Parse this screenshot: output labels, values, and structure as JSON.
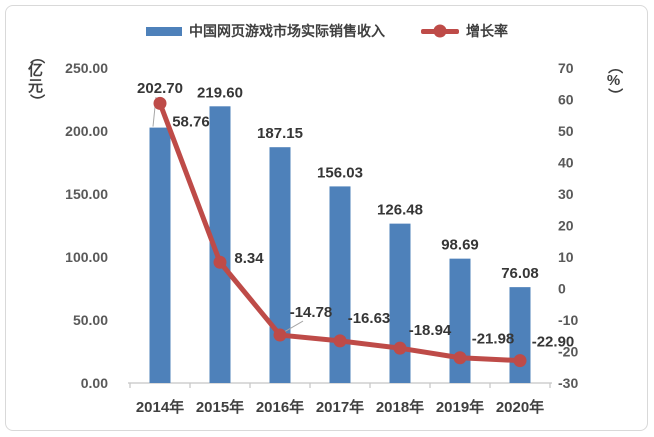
{
  "chart_data": {
    "type": "combo-bar-line",
    "categories": [
      "2014年",
      "2015年",
      "2016年",
      "2017年",
      "2018年",
      "2019年",
      "2020年"
    ],
    "series": [
      {
        "name": "中国网页游戏市场实际销售收入",
        "type": "bar",
        "axis": "left",
        "color": "#4e81ba",
        "values": [
          202.7,
          219.6,
          187.15,
          156.03,
          126.48,
          98.69,
          76.08
        ],
        "labels": [
          "202.70",
          "219.60",
          "187.15",
          "156.03",
          "126.48",
          "98.69",
          "76.08"
        ]
      },
      {
        "name": "增长率",
        "type": "line",
        "axis": "right",
        "color": "#be4b48",
        "values": [
          58.76,
          8.34,
          -14.78,
          -16.63,
          -18.94,
          -21.98,
          -22.9
        ],
        "labels": [
          "58.76",
          "8.34",
          "-14.78",
          "-16.63",
          "-18.94",
          "-21.98",
          "-22.90"
        ]
      }
    ],
    "left_axis": {
      "unit": "（亿元）",
      "min": 0,
      "max": 250,
      "ticks": [
        "0.00",
        "50.00",
        "100.00",
        "150.00",
        "200.00",
        "250.00"
      ]
    },
    "right_axis": {
      "unit": "（%）",
      "min": -30,
      "max": 70,
      "ticks": [
        "-30",
        "-20",
        "-10",
        "0",
        "10",
        "20",
        "30",
        "40",
        "50",
        "60",
        "70"
      ]
    },
    "legend_position": "top",
    "grid": false
  }
}
